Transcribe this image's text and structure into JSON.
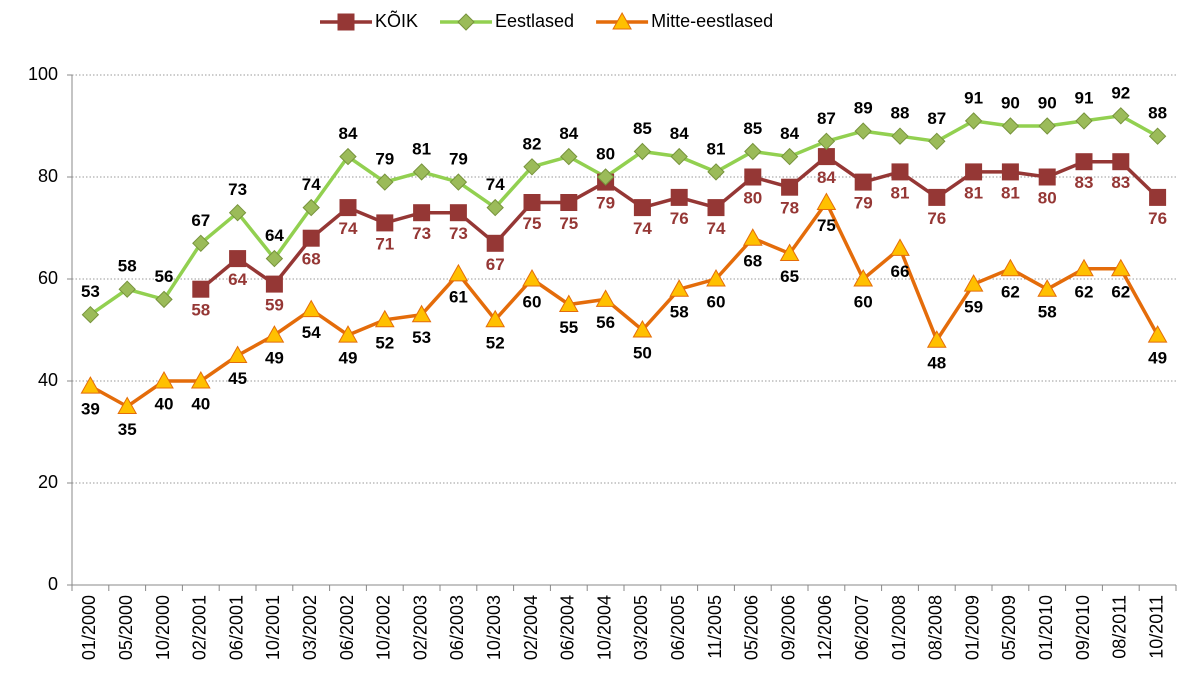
{
  "chart_data": {
    "type": "line",
    "categories": [
      "01/2000",
      "05/2000",
      "10/2000",
      "02/2001",
      "06/2001",
      "10/2001",
      "03/2002",
      "06/2002",
      "10/2002",
      "02/2003",
      "06/2003",
      "10/2003",
      "02/2004",
      "06/2004",
      "10/2004",
      "03/2005",
      "06/2005",
      "11/2005",
      "05/2006",
      "09/2006",
      "12/2006",
      "06/2007",
      "01/2008",
      "08/2008",
      "01/2009",
      "05/2009",
      "01/2010",
      "09/2010",
      "08/2011",
      "10/2011"
    ],
    "series": [
      {
        "name": "KÕIK",
        "color": "#953735",
        "marker": "square",
        "marker_fill": "#953735",
        "label_color": "#953735",
        "values": [
          null,
          null,
          null,
          58,
          64,
          59,
          68,
          74,
          71,
          73,
          73,
          67,
          75,
          75,
          79,
          74,
          76,
          74,
          80,
          78,
          84,
          79,
          81,
          76,
          81,
          81,
          80,
          83,
          83,
          76
        ]
      },
      {
        "name": "Eestlased",
        "color": "#92d050",
        "marker": "diamond",
        "marker_fill": "#9bbb59",
        "label_color": "#000000",
        "values": [
          53,
          58,
          56,
          67,
          73,
          64,
          74,
          84,
          79,
          81,
          79,
          74,
          82,
          84,
          80,
          85,
          84,
          81,
          85,
          84,
          87,
          89,
          88,
          87,
          91,
          90,
          90,
          91,
          92,
          88
        ]
      },
      {
        "name": "Mitte-eestlased",
        "color": "#e46c0a",
        "marker": "triangle",
        "marker_fill": "#ffc000",
        "label_color": "#000000",
        "values": [
          39,
          35,
          40,
          40,
          45,
          49,
          54,
          49,
          52,
          53,
          61,
          52,
          60,
          55,
          56,
          50,
          58,
          60,
          68,
          65,
          75,
          60,
          66,
          48,
          59,
          62,
          58,
          62,
          62,
          49
        ]
      }
    ],
    "ylim": [
      0,
      100
    ],
    "yticks": [
      0,
      20,
      40,
      60,
      80,
      100
    ],
    "grid": true,
    "legend": "top"
  }
}
